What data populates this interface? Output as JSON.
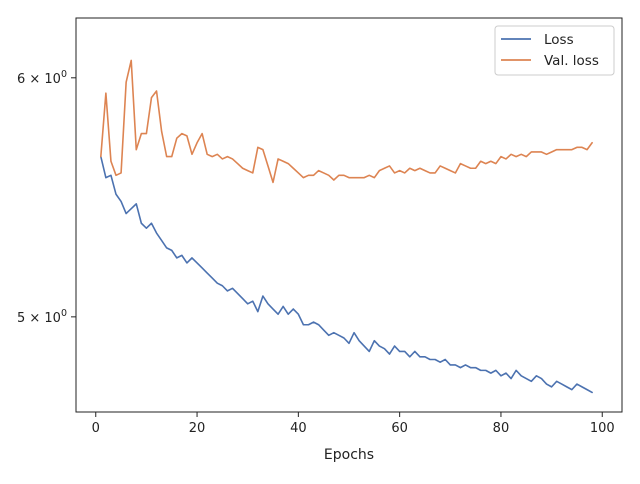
{
  "chart_data": {
    "type": "line",
    "xlabel": "Epochs",
    "ylabel": "",
    "yscale": "log",
    "xlim": [
      -3.9,
      103.9
    ],
    "ylim": [
      4.65,
      6.28
    ],
    "xticks": [
      0,
      20,
      40,
      60,
      80,
      100
    ],
    "xtick_labels": [
      "0",
      "20",
      "40",
      "60",
      "80",
      "100"
    ],
    "yticks": [
      5,
      6
    ],
    "ytick_labels": [
      {
        "base": "5",
        "sep": "×",
        "pow": "10",
        "exp": "0"
      },
      {
        "base": "6",
        "sep": "×",
        "pow": "10",
        "exp": "0"
      }
    ],
    "grid": false,
    "legend_position": "top-right",
    "series": [
      {
        "name": "Loss",
        "color": "#4c72b0",
        "x": [
          1,
          2,
          3,
          4,
          5,
          6,
          7,
          8,
          9,
          10,
          11,
          12,
          13,
          14,
          15,
          16,
          17,
          18,
          19,
          20,
          21,
          22,
          23,
          24,
          25,
          26,
          27,
          28,
          29,
          30,
          31,
          32,
          33,
          34,
          35,
          36,
          37,
          38,
          39,
          40,
          41,
          42,
          43,
          44,
          45,
          46,
          47,
          48,
          49,
          50,
          51,
          52,
          53,
          54,
          55,
          56,
          57,
          58,
          59,
          60,
          61,
          62,
          63,
          64,
          65,
          66,
          67,
          68,
          69,
          70,
          71,
          72,
          73,
          74,
          75,
          76,
          77,
          78,
          79,
          80,
          81,
          82,
          83,
          84,
          85,
          86,
          87,
          88,
          89,
          90,
          91,
          92,
          93,
          94,
          95,
          96,
          97,
          98
        ],
        "values": [
          5.65,
          5.56,
          5.57,
          5.49,
          5.46,
          5.41,
          5.43,
          5.45,
          5.37,
          5.35,
          5.37,
          5.33,
          5.3,
          5.27,
          5.26,
          5.23,
          5.24,
          5.21,
          5.23,
          5.21,
          5.19,
          5.17,
          5.15,
          5.13,
          5.12,
          5.1,
          5.11,
          5.09,
          5.07,
          5.05,
          5.06,
          5.02,
          5.08,
          5.05,
          5.03,
          5.01,
          5.04,
          5.01,
          5.03,
          5.01,
          4.97,
          4.97,
          4.98,
          4.97,
          4.95,
          4.93,
          4.94,
          4.93,
          4.92,
          4.9,
          4.94,
          4.91,
          4.89,
          4.87,
          4.91,
          4.89,
          4.88,
          4.86,
          4.89,
          4.87,
          4.87,
          4.85,
          4.87,
          4.85,
          4.85,
          4.84,
          4.84,
          4.83,
          4.84,
          4.82,
          4.82,
          4.81,
          4.82,
          4.81,
          4.81,
          4.8,
          4.8,
          4.79,
          4.8,
          4.78,
          4.79,
          4.77,
          4.8,
          4.78,
          4.77,
          4.76,
          4.78,
          4.77,
          4.75,
          4.74,
          4.76,
          4.75,
          4.74,
          4.73,
          4.75,
          4.74,
          4.73,
          4.72
        ]
      },
      {
        "name": "Val. loss",
        "color": "#dd8452",
        "x": [
          1,
          2,
          3,
          4,
          5,
          6,
          7,
          8,
          9,
          10,
          11,
          12,
          13,
          14,
          15,
          16,
          17,
          18,
          19,
          20,
          21,
          22,
          23,
          24,
          25,
          26,
          27,
          28,
          29,
          30,
          31,
          32,
          33,
          34,
          35,
          36,
          37,
          38,
          39,
          40,
          41,
          42,
          43,
          44,
          45,
          46,
          47,
          48,
          49,
          50,
          51,
          52,
          53,
          54,
          55,
          56,
          57,
          58,
          59,
          60,
          61,
          62,
          63,
          64,
          65,
          66,
          67,
          68,
          69,
          70,
          71,
          72,
          73,
          74,
          75,
          76,
          77,
          78,
          79,
          80,
          81,
          82,
          83,
          84,
          85,
          86,
          87,
          88,
          89,
          90,
          91,
          92,
          93,
          94,
          95,
          96,
          97,
          98
        ],
        "values": [
          5.65,
          5.93,
          5.63,
          5.57,
          5.58,
          5.98,
          6.08,
          5.68,
          5.75,
          5.75,
          5.91,
          5.94,
          5.76,
          5.65,
          5.65,
          5.73,
          5.75,
          5.74,
          5.66,
          5.71,
          5.75,
          5.66,
          5.65,
          5.66,
          5.64,
          5.65,
          5.64,
          5.62,
          5.6,
          5.59,
          5.58,
          5.69,
          5.68,
          5.61,
          5.54,
          5.64,
          5.63,
          5.62,
          5.6,
          5.58,
          5.56,
          5.57,
          5.57,
          5.59,
          5.58,
          5.57,
          5.55,
          5.57,
          5.57,
          5.56,
          5.56,
          5.56,
          5.56,
          5.57,
          5.56,
          5.59,
          5.6,
          5.61,
          5.58,
          5.59,
          5.58,
          5.6,
          5.59,
          5.6,
          5.59,
          5.58,
          5.58,
          5.61,
          5.6,
          5.59,
          5.58,
          5.62,
          5.61,
          5.6,
          5.6,
          5.63,
          5.62,
          5.63,
          5.62,
          5.65,
          5.64,
          5.66,
          5.65,
          5.66,
          5.65,
          5.67,
          5.67,
          5.67,
          5.66,
          5.67,
          5.68,
          5.68,
          5.68,
          5.68,
          5.69,
          5.69,
          5.68,
          5.71
        ]
      }
    ]
  }
}
